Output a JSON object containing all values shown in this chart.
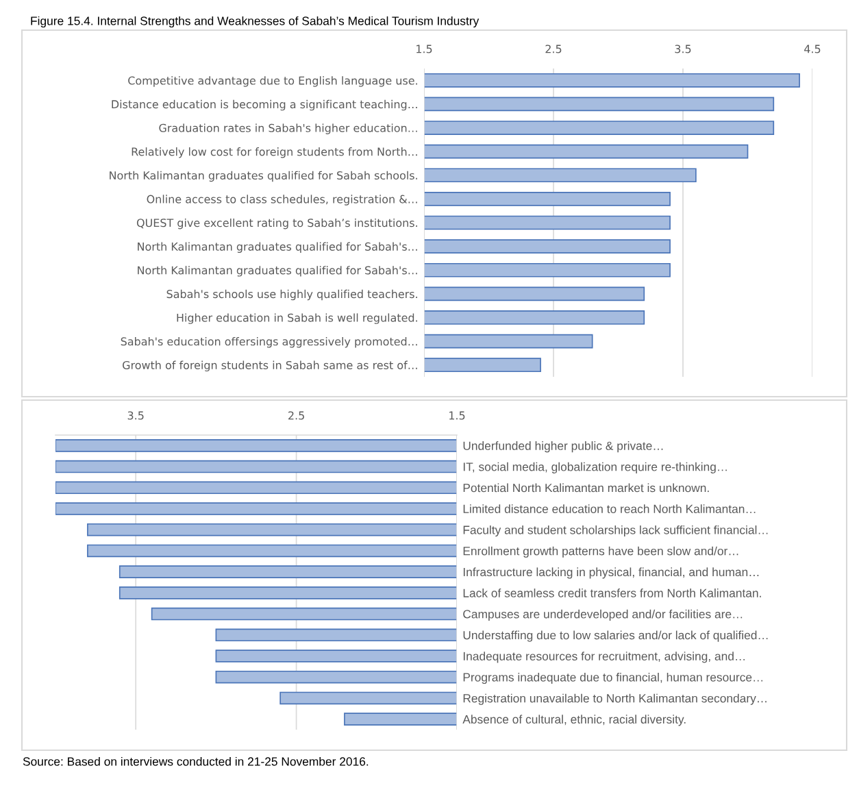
{
  "chart_data": [
    {
      "type": "bar",
      "orientation": "horizontal",
      "title": "Figure 15.4. Internal Strengths and Weaknesses of Sabah’s Medical Tourism Industry",
      "color": "#a6bcdf",
      "categories": [
        "Competitive advantage due to English language use.",
        "Distance education is becoming a significant teaching…",
        "Graduation rates in Sabah's higher education…",
        "Relatively low cost for foreign students from North…",
        "North Kalimantan graduates qualified for Sabah schools.",
        "Online access to class schedules, registration &…",
        "QUEST give excellent rating to Sabah’s institutions.",
        "North Kalimantan graduates qualified for Sabah's…",
        "North Kalimantan graduates qualified for Sabah's…",
        "Sabah's schools use highly qualified teachers.",
        "Higher education in Sabah is well regulated.",
        "Sabah's education offersings aggressively promoted…",
        "Growth of foreign students in Sabah same as rest of…"
      ],
      "values": [
        4.4,
        4.2,
        4.2,
        4.0,
        3.6,
        3.4,
        3.4,
        3.4,
        3.4,
        3.2,
        3.2,
        2.8,
        2.4
      ],
      "xlim": [
        1.5,
        4.5
      ],
      "xticks": [
        1.5,
        2.5,
        3.5,
        4.5
      ],
      "grid": "x"
    },
    {
      "type": "bar",
      "orientation": "horizontal",
      "color": "#a6bcdf",
      "categories": [
        "Underfunded higher public & private…",
        "IT, social media, globalization require re-thinking…",
        "Potential North Kalimantan market is unknown.",
        "Limited distance education to reach North Kalimantan…",
        "Faculty and student scholarships lack sufficient financial…",
        "Enrollment growth patterns have been slow and/or…",
        "Infrastructure lacking in physical, financial, and human…",
        "Lack of seamless credit transfers from North Kalimantan.",
        "Campuses are underdeveloped and/or facilities are…",
        "Understaffing due to low salaries and/or lack of qualified…",
        "Inadequate resources for recruitment, advising, and…",
        "Programs inadequate due to financial, human resource…",
        "Registration unavailable to North Kalimantan secondary…",
        "Absence of cultural, ethnic, racial diversity."
      ],
      "values": [
        4.0,
        4.0,
        4.0,
        4.0,
        3.8,
        3.8,
        3.6,
        3.6,
        3.4,
        3.0,
        3.0,
        3.0,
        2.6,
        2.2
      ],
      "xlim": [
        4.0,
        1.5
      ],
      "xticks": [
        3.5,
        2.5,
        1.5
      ],
      "grid": "x",
      "annotations": [
        "Source: Based on interviews conducted in 21-25 November 2016."
      ]
    }
  ]
}
